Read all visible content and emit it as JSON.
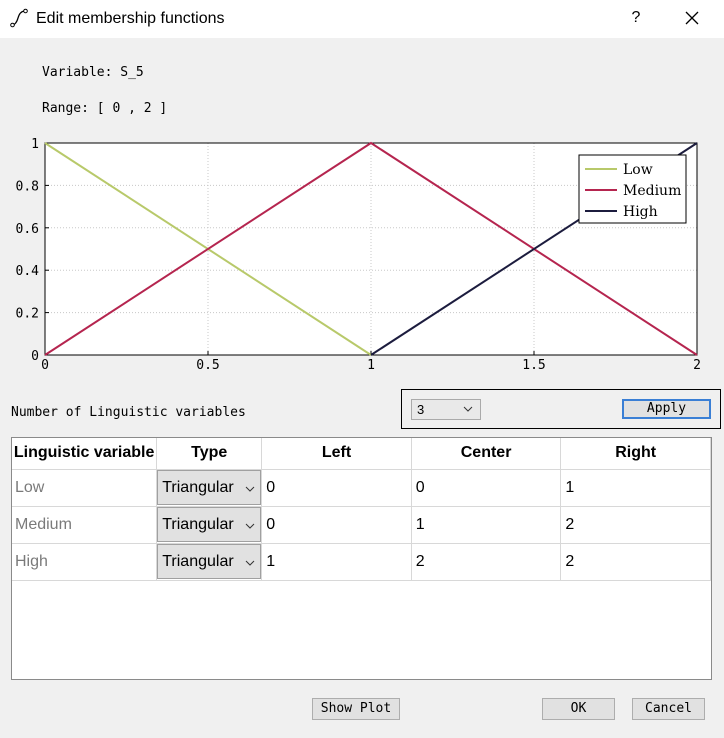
{
  "window": {
    "title": "Edit membership functions",
    "help_label": "?"
  },
  "info": {
    "variable_label": "Variable: S_5",
    "range_label": "Range: [ 0 , 2 ]"
  },
  "chart_data": {
    "type": "line",
    "title": "",
    "xlabel": "",
    "ylabel": "",
    "xlim": [
      0,
      2
    ],
    "ylim": [
      0,
      1
    ],
    "x_ticks": [
      "0",
      "0.5",
      "1",
      "1.5",
      "2"
    ],
    "y_ticks": [
      "0",
      "0.2",
      "0.4",
      "0.6",
      "0.8",
      "1"
    ],
    "grid": true,
    "legend_position": "top-right",
    "series": [
      {
        "name": "Low",
        "color": "#b8c96a",
        "x": [
          0,
          1
        ],
        "y": [
          1,
          0
        ]
      },
      {
        "name": "Medium",
        "color": "#b5254f",
        "x": [
          0,
          1,
          2
        ],
        "y": [
          0,
          1,
          0
        ]
      },
      {
        "name": "High",
        "color": "#1c1c3e",
        "x": [
          1,
          2
        ],
        "y": [
          0,
          1
        ]
      }
    ]
  },
  "controls": {
    "nlv_label": "Number of Linguistic variables",
    "count_value": "3",
    "apply_label": "Apply"
  },
  "table": {
    "headers": [
      "Linguistic variable",
      "Type",
      "Left",
      "Center",
      "Right"
    ],
    "rows": [
      {
        "name": "Low",
        "type": "Triangular",
        "left": "0",
        "center": "0",
        "right": "1"
      },
      {
        "name": "Medium",
        "type": "Triangular",
        "left": "0",
        "center": "1",
        "right": "2"
      },
      {
        "name": "High",
        "type": "Triangular",
        "left": "1",
        "center": "2",
        "right": "2"
      }
    ]
  },
  "footer": {
    "show_plot_label": "Show Plot",
    "ok_label": "OK",
    "cancel_label": "Cancel"
  }
}
